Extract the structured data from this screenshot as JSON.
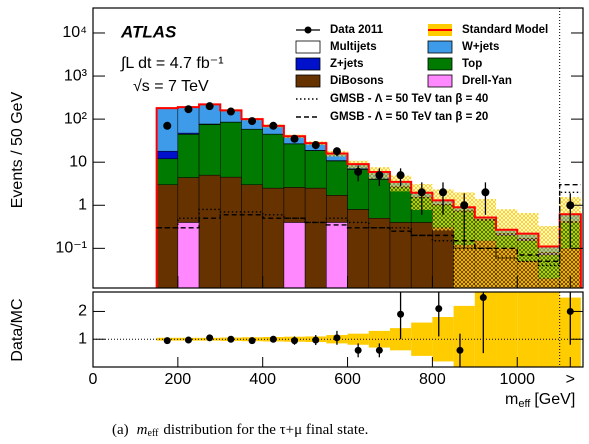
{
  "chart_data": [
    {
      "type": "stacked_histogram",
      "y_label": "Events / 50 GeV",
      "annotations": {
        "experiment": "ATLAS",
        "luminosity": "∫L dt = 4.7 fb⁻¹",
        "energy": "√s = 7 TeV"
      },
      "bins": [
        150,
        200,
        250,
        300,
        350,
        400,
        450,
        500,
        550,
        600,
        650,
        700,
        750,
        800,
        850,
        900,
        950,
        1000,
        1050,
        1100,
        1150
      ],
      "series": [
        {
          "name": "Drell-Yan",
          "color": "#ff88ff",
          "values": [
            0,
            0.4,
            0,
            0,
            0,
            0,
            0.4,
            0,
            0.4,
            0,
            0,
            0,
            0,
            0,
            0,
            0,
            0,
            0,
            0,
            0
          ]
        },
        {
          "name": "DiBosons",
          "color": "#663300",
          "values": [
            3,
            4,
            5,
            4.5,
            3,
            2.5,
            2.2,
            2.5,
            1.3,
            0.8,
            0.5,
            0.4,
            0.4,
            0.3,
            0.12,
            0.15,
            0.1,
            0.05,
            0.02,
            0.1
          ]
        },
        {
          "name": "Top",
          "color": "#007a00",
          "values": [
            9,
            40,
            70,
            80,
            55,
            42,
            24,
            16,
            9,
            6,
            3.5,
            2.2,
            1.1,
            0.7,
            0.6,
            0.3,
            0.1,
            0.1,
            0.05,
            0.3
          ]
        },
        {
          "name": "Z+jets",
          "color": "#0011cc",
          "values": [
            6,
            3,
            2,
            1,
            0.5,
            0.4,
            0.3,
            0.3,
            0.2,
            0.2,
            0.1,
            0.1,
            0.05,
            0.05,
            0.03,
            0.02,
            0.02,
            0.02,
            0.01,
            0.02
          ]
        },
        {
          "name": "W+jets",
          "color": "#3d9be9",
          "values": [
            162,
            143,
            143,
            74.5,
            41.5,
            25,
            13,
            9,
            5,
            2,
            1.8,
            0.8,
            0.4,
            0.25,
            0.15,
            0.05,
            0.05,
            0.05,
            0.03,
            0.2
          ]
        },
        {
          "name": "Multijets",
          "color": "#ffffff",
          "values": [
            0,
            0,
            0,
            0,
            0,
            0,
            0,
            0,
            0,
            0,
            0,
            0,
            0,
            0,
            0,
            0,
            0,
            0,
            0,
            0
          ]
        }
      ],
      "sm": {
        "name": "Standard Model",
        "color": "#ff0000",
        "band_color": "#ffcc00"
      },
      "data": {
        "name": "Data 2011",
        "color": "#000000",
        "x": [
          175,
          225,
          275,
          325,
          375,
          425,
          475,
          525,
          575,
          625,
          675,
          725,
          775,
          825,
          875,
          925,
          1125
        ],
        "values": [
          70,
          170,
          200,
          150,
          90,
          70,
          35,
          25,
          18,
          6,
          5,
          5,
          2,
          2,
          1,
          2,
          1
        ],
        "errors": [
          8,
          13,
          14,
          12,
          9,
          8,
          6,
          5,
          4.2,
          2.4,
          2.2,
          2.2,
          1.4,
          1.4,
          0.9,
          1.4,
          0.9
        ]
      },
      "signals": [
        {
          "name": "GMSB - Λ = 50 TeV tan β = 40",
          "dash": "1.5 2.5",
          "values": [
            0.3,
            0.5,
            0.8,
            0.7,
            0.7,
            0.6,
            0.5,
            0.4,
            0.5,
            0.4,
            0.3,
            0.3,
            0.2,
            0.15,
            0.1,
            0.1,
            0.06,
            0.05,
            0.04,
            2
          ]
        },
        {
          "name": "GMSB - Λ = 50 TeV tan β = 20",
          "dash": "5 3",
          "values": [
            0.3,
            0.3,
            0.5,
            0.6,
            0.6,
            0.5,
            0.5,
            0.4,
            0.35,
            0.3,
            0.3,
            0.25,
            0.2,
            0.2,
            0.15,
            0.1,
            0.1,
            0.07,
            0.05,
            3
          ]
        }
      ],
      "overflow_line": 1100,
      "log_y": true,
      "xlim": [
        0,
        1155
      ],
      "ylim": [
        0.012,
        38000
      ],
      "yticks": [
        {
          "value": 0.1,
          "label": "10⁻¹"
        },
        1,
        10,
        {
          "value": 100,
          "label": "10²"
        },
        {
          "value": 1000,
          "label": "10³"
        },
        {
          "value": 10000,
          "label": "10⁴"
        }
      ]
    },
    {
      "type": "ratio",
      "y_label": "Data/MC",
      "x_label": {
        "main": "m",
        "sub": "eff",
        "unit": "[GeV]"
      },
      "xlim": [
        0,
        1155
      ],
      "xticks": [
        0,
        200,
        400,
        600,
        800,
        1000,
        {
          "value": 1125,
          "label": ">"
        }
      ],
      "ylim": [
        0,
        2.7
      ],
      "yticks": [
        1,
        2
      ],
      "reference_line": 1,
      "band": {
        "color": "#ffcc00",
        "values": [
          0.05,
          0.05,
          0.05,
          0.06,
          0.07,
          0.08,
          0.09,
          0.1,
          0.15,
          0.2,
          0.3,
          0.4,
          0.6,
          0.8,
          1.2,
          1.7,
          2,
          2,
          2,
          1.5
        ]
      },
      "data": {
        "x": [
          175,
          225,
          275,
          325,
          375,
          425,
          475,
          525,
          575,
          625,
          675,
          725,
          815,
          865,
          920,
          1125
        ],
        "values": [
          0.95,
          0.97,
          1.05,
          1.0,
          0.95,
          1.0,
          0.95,
          0.97,
          1.05,
          0.6,
          0.6,
          1.9,
          2.1,
          0.6,
          2.5,
          2.0
        ],
        "errors": [
          0.1,
          0.08,
          0.08,
          0.08,
          0.1,
          0.12,
          0.15,
          0.18,
          0.25,
          0.25,
          0.25,
          0.9,
          1.0,
          0.6,
          2,
          1.2
        ]
      }
    }
  ],
  "caption": {
    "label": "(a)",
    "symbol": "m",
    "sub": "eff",
    "text": "distribution for the τ+μ final state."
  }
}
